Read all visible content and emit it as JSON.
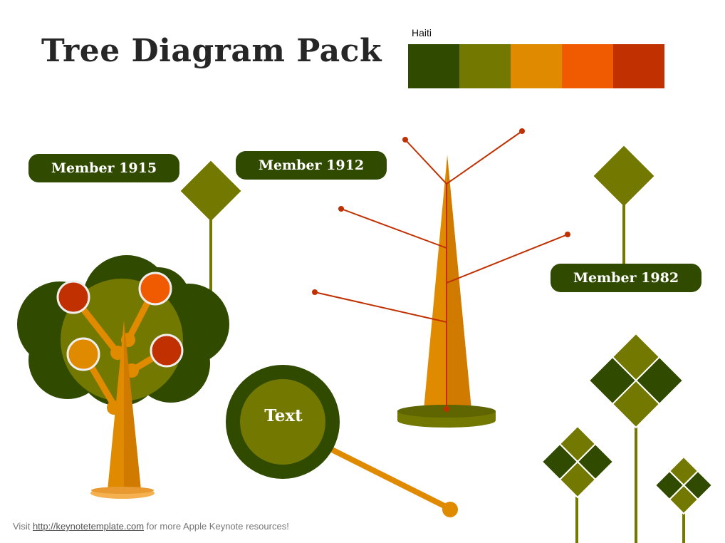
{
  "title": "Tree Diagram Pack",
  "palette": {
    "label": "Haiti",
    "colors": [
      "#304a00",
      "#737800",
      "#e08a00",
      "#f05a00",
      "#c03000"
    ]
  },
  "labels": {
    "member_1915": "Member 1915",
    "member_1912": "Member 1912",
    "member_1982": "Member 1982",
    "circle_text": "Text"
  },
  "footer": {
    "prefix": "Visit ",
    "link": "http://keynotetemplate.com",
    "suffix": " for more Apple Keynote resources!"
  }
}
